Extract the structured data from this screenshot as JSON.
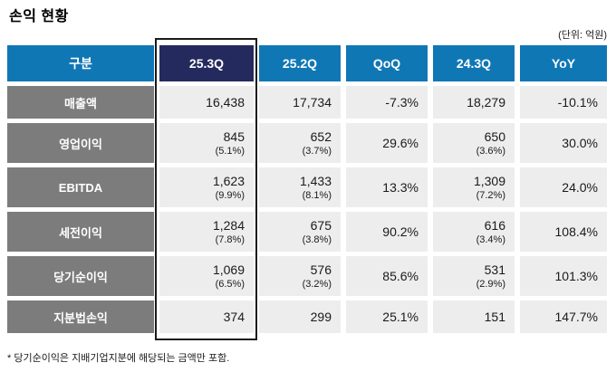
{
  "page": {
    "title": "손익 현황",
    "unit_note": "(단위: 억원)",
    "footnote": "* 당기순이익은 지배기업지분에 해당되는 금액만 포함."
  },
  "colors": {
    "header_blue": "#1077B5",
    "highlight_navy": "#242A5E",
    "label_gray": "#7C7C7C",
    "cell_bg": "#EDEDED",
    "highlight_border": "#1A1A1A"
  },
  "table": {
    "headers": [
      "구분",
      "25.3Q",
      "25.2Q",
      "QoQ",
      "24.3Q",
      "YoY"
    ],
    "highlight_column": "25.3Q",
    "rows": [
      {
        "label": "매출액",
        "values": [
          "16,438",
          "17,734",
          "-7.3%",
          "18,279",
          "-10.1%"
        ],
        "subs": [
          "",
          "",
          "",
          "",
          ""
        ]
      },
      {
        "label": "영업이익",
        "values": [
          "845",
          "652",
          "29.6%",
          "650",
          "30.0%"
        ],
        "subs": [
          "(5.1%)",
          "(3.7%)",
          "",
          "(3.6%)",
          ""
        ]
      },
      {
        "label": "EBITDA",
        "values": [
          "1,623",
          "1,433",
          "13.3%",
          "1,309",
          "24.0%"
        ],
        "subs": [
          "(9.9%)",
          "(8.1%)",
          "",
          "(7.2%)",
          ""
        ]
      },
      {
        "label": "세전이익",
        "values": [
          "1,284",
          "675",
          "90.2%",
          "616",
          "108.4%"
        ],
        "subs": [
          "(7.8%)",
          "(3.8%)",
          "",
          "(3.4%)",
          ""
        ]
      },
      {
        "label": "당기순이익",
        "values": [
          "1,069",
          "576",
          "85.6%",
          "531",
          "101.3%"
        ],
        "subs": [
          "(6.5%)",
          "(3.2%)",
          "",
          "(2.9%)",
          ""
        ]
      },
      {
        "label": "지분법손익",
        "values": [
          "374",
          "299",
          "25.1%",
          "151",
          "147.7%"
        ],
        "subs": [
          "",
          "",
          "",
          "",
          ""
        ]
      }
    ]
  },
  "chart_data": {
    "type": "table",
    "title": "손익 현황",
    "unit": "억원",
    "columns": [
      "구분",
      "25.3Q",
      "25.2Q",
      "QoQ",
      "24.3Q",
      "YoY"
    ],
    "rows": [
      [
        "매출액",
        "16,438",
        "17,734",
        "-7.3%",
        "18,279",
        "-10.1%"
      ],
      [
        "영업이익",
        "845 (5.1%)",
        "652 (3.7%)",
        "29.6%",
        "650 (3.6%)",
        "30.0%"
      ],
      [
        "EBITDA",
        "1,623 (9.9%)",
        "1,433 (8.1%)",
        "13.3%",
        "1,309 (7.2%)",
        "24.0%"
      ],
      [
        "세전이익",
        "1,284 (7.8%)",
        "675 (3.8%)",
        "90.2%",
        "616 (3.4%)",
        "108.4%"
      ],
      [
        "당기순이익",
        "1,069 (6.5%)",
        "576 (3.2%)",
        "85.6%",
        "531 (2.9%)",
        "101.3%"
      ],
      [
        "지분법손익",
        "374",
        "299",
        "25.1%",
        "151",
        "147.7%"
      ]
    ]
  }
}
